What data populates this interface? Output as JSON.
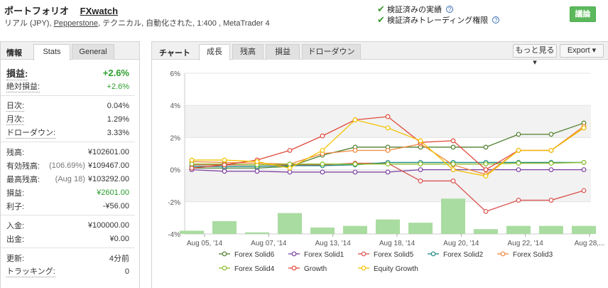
{
  "header": {
    "title": "ポートフォリオ",
    "account": "FXwatch",
    "sub_prefix": "リアル (JPY), ",
    "broker": "Pepperstone",
    "sub_suffix": ", テクニカル, 自動化された, 1:400 , MetaTrader 4",
    "verified_track": "検証済みの実績",
    "verified_privileges": "検証済みトレーディング権限",
    "qmark": "?",
    "discuss_button": "議論"
  },
  "left_tabs": {
    "label": "情報",
    "stats": "Stats",
    "general": "General"
  },
  "stats": {
    "gain": {
      "label": "損益:",
      "value": "+2.6%"
    },
    "abs_gain": {
      "label": "絶対損益:",
      "value": "+2.6%"
    },
    "daily": {
      "label": "日次:",
      "value": "0.04%"
    },
    "monthly": {
      "label": "月次:",
      "value": "1.29%"
    },
    "drawdown": {
      "label": "ドローダウン:",
      "value": "3.33%"
    },
    "balance": {
      "label": "残高:",
      "value": "¥102601.00"
    },
    "equity": {
      "label": "有効残高:",
      "note": "(106.69%)",
      "value": "¥109467.00"
    },
    "highest": {
      "label": "最高残高:",
      "note": "(Aug 18)",
      "value": "¥103292.00"
    },
    "profit": {
      "label": "損益:",
      "value": "¥2601.00"
    },
    "interest": {
      "label": "利子:",
      "value": "-¥56.00"
    },
    "deposits": {
      "label": "入金:",
      "value": "¥100000.00"
    },
    "withdrawals": {
      "label": "出金:",
      "value": "¥0.00"
    },
    "updated": {
      "label": "更新:",
      "value": "4分前"
    },
    "tracking": {
      "label": "トラッキング:",
      "value": "0"
    }
  },
  "right_tabs": {
    "label": "チャート",
    "growth": "成長",
    "balance": "残高",
    "profit": "損益",
    "drawdown": "ドローダウン",
    "more": "もっと見る",
    "more_icon": "chevron-down-icon",
    "export": "Export",
    "export_icon": "chevron-down-icon"
  },
  "chart_data": {
    "type": "line",
    "y_tick_labels": [
      "6%",
      "4%",
      "2%",
      "0%",
      "-2%",
      "-4%"
    ],
    "ylim": [
      -4,
      6
    ],
    "x_tick_labels": [
      "Aug 05, '14",
      "Aug 07, '14",
      "Aug 13, '14",
      "Aug 18, '14",
      "Aug 20, '14",
      "Aug 22, '14",
      "Aug 28,..."
    ],
    "series": [
      {
        "name": "Forex Solid6",
        "color": "#4f7f2e",
        "values": [
          0.1,
          0.1,
          0.1,
          0.2,
          0.9,
          1.4,
          1.4,
          1.4,
          1.4,
          1.4,
          2.2,
          2.2,
          2.9
        ]
      },
      {
        "name": "Forex Solid1",
        "color": "#7b3fa0",
        "values": [
          0.0,
          -0.1,
          -0.1,
          -0.15,
          -0.15,
          -0.15,
          -0.15,
          0.0,
          0.0,
          0.0,
          0.0,
          0.0,
          0.0
        ]
      },
      {
        "name": "Forex Solid5",
        "color": "#d9534f",
        "values": [
          0.3,
          0.3,
          0.3,
          0.3,
          0.3,
          0.4,
          0.4,
          -0.7,
          -0.7,
          -2.6,
          -1.9,
          -1.9,
          -1.3
        ]
      },
      {
        "name": "Forex Solid2",
        "color": "#1f8a8a",
        "values": [
          0.2,
          0.2,
          0.2,
          0.25,
          0.25,
          0.3,
          0.45,
          0.45,
          0.45,
          0.45,
          0.45,
          0.45,
          0.45
        ]
      },
      {
        "name": "Forex Solid3",
        "color": "#f0883e",
        "values": [
          0.5,
          0.45,
          0.4,
          0.35,
          1.0,
          1.2,
          1.2,
          1.6,
          0.3,
          -0.3,
          1.2,
          1.2,
          2.7
        ]
      },
      {
        "name": "Forex Solid4",
        "color": "#8fbf2a",
        "values": [
          0.35,
          0.35,
          0.3,
          0.35,
          0.35,
          0.35,
          0.35,
          0.35,
          0.35,
          0.35,
          0.4,
          0.4,
          0.45
        ]
      },
      {
        "name": "Growth",
        "color": "#e04a3a",
        "values": [
          0.1,
          0.3,
          0.6,
          1.2,
          2.1,
          3.1,
          3.3,
          1.7,
          1.8,
          0.0,
          1.2,
          1.2,
          2.6
        ]
      },
      {
        "name": "Equity Growth",
        "color": "#f2c200",
        "values": [
          0.6,
          0.6,
          0.5,
          0.1,
          1.2,
          3.1,
          2.6,
          1.8,
          0.0,
          -0.4,
          1.2,
          1.2,
          2.6
        ]
      }
    ],
    "bars": [
      0.2,
      0.8,
      0.1,
      1.3,
      0.4,
      0.5,
      0.9,
      0.7,
      2.2,
      0.3,
      0.5,
      0.5,
      0.5
    ],
    "bar_color": "#a9dca0",
    "legend_position": "bottom"
  }
}
